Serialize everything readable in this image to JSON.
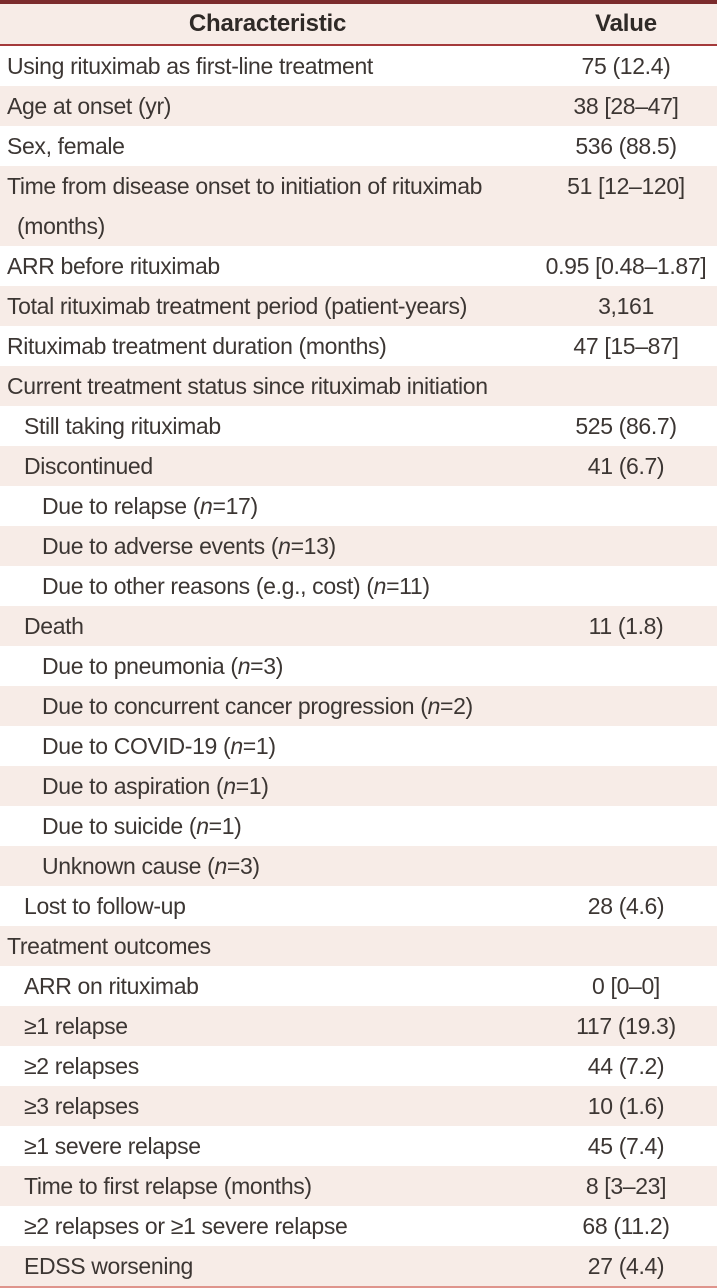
{
  "table": {
    "columns": [
      "Characteristic",
      "Value"
    ],
    "rows": [
      {
        "label": "Using rituximab as first-line treatment",
        "value": "75 (12.4)",
        "indent": 0
      },
      {
        "label": "Age at onset (yr)",
        "value": "38 [28–47]",
        "indent": 0
      },
      {
        "label": "Sex, female",
        "value": "536 (88.5)",
        "indent": 0
      },
      {
        "label": "Time from disease onset to initiation of rituximab (months)",
        "value": "51 [12–120]",
        "indent": 0
      },
      {
        "label": "ARR before rituximab",
        "value": "0.95 [0.48–1.87]",
        "indent": 0
      },
      {
        "label": "Total rituximab treatment period (patient-years)",
        "value": "3,161",
        "indent": 0
      },
      {
        "label": "Rituximab treatment duration (months)",
        "value": "47 [15–87]",
        "indent": 0
      },
      {
        "label": "Current treatment status since rituximab initiation",
        "value": "",
        "indent": 0
      },
      {
        "label": "Still taking rituximab",
        "value": "525 (86.7)",
        "indent": 1
      },
      {
        "label": "Discontinued",
        "value": "41 (6.7)",
        "indent": 1
      },
      {
        "label": "Due to relapse (n=17)",
        "value": "",
        "indent": 2
      },
      {
        "label": "Due to adverse events (n=13)",
        "value": "",
        "indent": 2
      },
      {
        "label": "Due to other reasons (e.g., cost) (n=11)",
        "value": "",
        "indent": 2
      },
      {
        "label": "Death",
        "value": "11 (1.8)",
        "indent": 1
      },
      {
        "label": "Due to pneumonia (n=3)",
        "value": "",
        "indent": 2
      },
      {
        "label": "Due to concurrent cancer progression (n=2)",
        "value": "",
        "indent": 2
      },
      {
        "label": "Due to COVID-19 (n=1)",
        "value": "",
        "indent": 2
      },
      {
        "label": "Due to aspiration (n=1)",
        "value": "",
        "indent": 2
      },
      {
        "label": "Due to suicide (n=1)",
        "value": "",
        "indent": 2
      },
      {
        "label": "Unknown cause (n=3)",
        "value": "",
        "indent": 2
      },
      {
        "label": "Lost to follow-up",
        "value": "28 (4.6)",
        "indent": 1
      },
      {
        "label": "Treatment outcomes",
        "value": "",
        "indent": 0
      },
      {
        "label": "ARR on rituximab",
        "value": "0 [0–0]",
        "indent": 1
      },
      {
        "label": "≥1 relapse",
        "value": "117 (19.3)",
        "indent": 1
      },
      {
        "label": "≥2 relapses",
        "value": "44 (7.2)",
        "indent": 1
      },
      {
        "label": "≥3 relapses",
        "value": "10 (1.6)",
        "indent": 1
      },
      {
        "label": "≥1 severe relapse",
        "value": "45 (7.4)",
        "indent": 1
      },
      {
        "label": "Time to first relapse (months)",
        "value": "8 [3–23]",
        "indent": 1
      },
      {
        "label": "≥2 relapses or ≥1 severe relapse",
        "value": "68 (11.2)",
        "indent": 1
      },
      {
        "label": "EDSS worsening",
        "value": "27 (4.4)",
        "indent": 1
      }
    ]
  },
  "colors": {
    "top_border": "#7b2b2c",
    "header_rule": "#a43a3b",
    "bottom_border": "#df948c",
    "stripe": "#f7ece7",
    "text": "#3c3633",
    "header_text": "#2f2a27"
  }
}
